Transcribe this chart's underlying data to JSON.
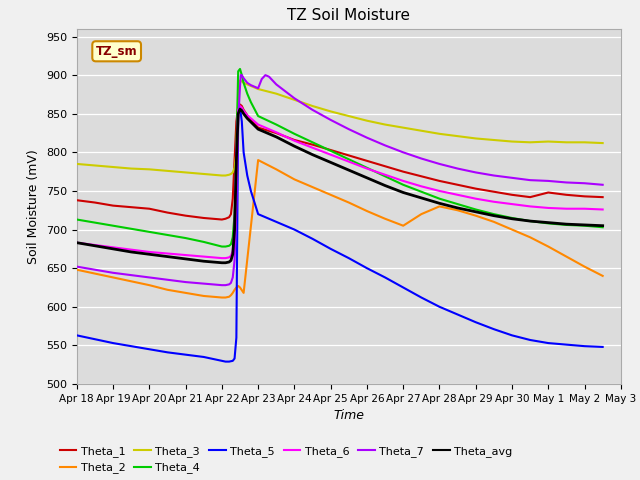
{
  "title": "TZ Soil Moisture",
  "ylabel": "Soil Moisture (mV)",
  "xlabel": "Time",
  "legend_label": "TZ_sm",
  "ylim": [
    500,
    960
  ],
  "yticks": [
    500,
    550,
    600,
    650,
    700,
    750,
    800,
    850,
    900,
    950
  ],
  "x_tick_labels": [
    "Apr 18",
    "Apr 19",
    "Apr 20",
    "Apr 21",
    "Apr 22",
    "Apr 23",
    "Apr 24",
    "Apr 25",
    "Apr 26",
    "Apr 27",
    "Apr 28",
    "Apr 29",
    "Apr 30",
    "May 1",
    "May 2",
    "May 3"
  ],
  "background_color": "#dcdcdc",
  "series": {
    "Theta_1": {
      "color": "#cc0000",
      "points": [
        [
          0,
          738
        ],
        [
          0.5,
          735
        ],
        [
          1,
          731
        ],
        [
          1.5,
          729
        ],
        [
          2,
          727
        ],
        [
          2.5,
          722
        ],
        [
          3,
          718
        ],
        [
          3.5,
          715
        ],
        [
          4.0,
          713
        ],
        [
          4.1,
          714
        ],
        [
          4.2,
          716
        ],
        [
          4.25,
          720
        ],
        [
          4.3,
          740
        ],
        [
          4.35,
          790
        ],
        [
          4.4,
          840
        ],
        [
          4.45,
          858
        ],
        [
          4.5,
          862
        ],
        [
          4.55,
          860
        ],
        [
          4.6,
          855
        ],
        [
          4.7,
          848
        ],
        [
          4.8,
          842
        ],
        [
          5,
          832
        ],
        [
          5.5,
          825
        ],
        [
          6,
          816
        ],
        [
          6.5,
          810
        ],
        [
          7,
          803
        ],
        [
          7.5,
          796
        ],
        [
          8,
          789
        ],
        [
          8.5,
          782
        ],
        [
          9,
          775
        ],
        [
          9.5,
          769
        ],
        [
          10,
          763
        ],
        [
          10.5,
          758
        ],
        [
          11,
          753
        ],
        [
          11.5,
          749
        ],
        [
          12,
          745
        ],
        [
          12.5,
          742
        ],
        [
          13,
          748
        ],
        [
          13.5,
          745
        ],
        [
          14,
          743
        ],
        [
          14.5,
          742
        ]
      ]
    },
    "Theta_2": {
      "color": "#ff8800",
      "points": [
        [
          0,
          648
        ],
        [
          0.5,
          643
        ],
        [
          1,
          638
        ],
        [
          1.5,
          633
        ],
        [
          2,
          628
        ],
        [
          2.5,
          622
        ],
        [
          3,
          618
        ],
        [
          3.5,
          614
        ],
        [
          4.0,
          612
        ],
        [
          4.1,
          612
        ],
        [
          4.2,
          613
        ],
        [
          4.25,
          615
        ],
        [
          4.3,
          618
        ],
        [
          4.35,
          622
        ],
        [
          4.4,
          625
        ],
        [
          4.45,
          627
        ],
        [
          4.5,
          625
        ],
        [
          4.6,
          618
        ],
        [
          5,
          790
        ],
        [
          5.5,
          778
        ],
        [
          6,
          765
        ],
        [
          6.5,
          755
        ],
        [
          7,
          745
        ],
        [
          7.5,
          735
        ],
        [
          8,
          724
        ],
        [
          8.5,
          714
        ],
        [
          9,
          705
        ],
        [
          9.5,
          720
        ],
        [
          10,
          730
        ],
        [
          10.5,
          725
        ],
        [
          11,
          718
        ],
        [
          11.5,
          710
        ],
        [
          12,
          700
        ],
        [
          12.5,
          690
        ],
        [
          13,
          678
        ],
        [
          13.5,
          665
        ],
        [
          14,
          652
        ],
        [
          14.5,
          640
        ]
      ]
    },
    "Theta_3": {
      "color": "#cccc00",
      "points": [
        [
          0,
          785
        ],
        [
          0.5,
          783
        ],
        [
          1,
          781
        ],
        [
          1.5,
          779
        ],
        [
          2,
          778
        ],
        [
          2.5,
          776
        ],
        [
          3,
          774
        ],
        [
          3.5,
          772
        ],
        [
          4.0,
          770
        ],
        [
          4.1,
          770
        ],
        [
          4.2,
          771
        ],
        [
          4.25,
          772
        ],
        [
          4.3,
          774
        ],
        [
          4.35,
          780
        ],
        [
          4.4,
          800
        ],
        [
          4.45,
          878
        ],
        [
          4.5,
          893
        ],
        [
          4.55,
          892
        ],
        [
          4.6,
          890
        ],
        [
          4.7,
          888
        ],
        [
          4.8,
          886
        ],
        [
          5,
          882
        ],
        [
          5.5,
          876
        ],
        [
          6,
          868
        ],
        [
          6.5,
          860
        ],
        [
          7,
          853
        ],
        [
          7.5,
          847
        ],
        [
          8,
          841
        ],
        [
          8.5,
          836
        ],
        [
          9,
          832
        ],
        [
          9.5,
          828
        ],
        [
          10,
          824
        ],
        [
          10.5,
          821
        ],
        [
          11,
          818
        ],
        [
          11.5,
          816
        ],
        [
          12,
          814
        ],
        [
          12.5,
          813
        ],
        [
          13,
          814
        ],
        [
          13.5,
          813
        ],
        [
          14,
          813
        ],
        [
          14.5,
          812
        ]
      ]
    },
    "Theta_4": {
      "color": "#00cc00",
      "points": [
        [
          0,
          713
        ],
        [
          0.5,
          709
        ],
        [
          1,
          705
        ],
        [
          1.5,
          701
        ],
        [
          2,
          697
        ],
        [
          2.5,
          693
        ],
        [
          3,
          689
        ],
        [
          3.5,
          684
        ],
        [
          4.0,
          678
        ],
        [
          4.1,
          678
        ],
        [
          4.2,
          679
        ],
        [
          4.25,
          681
        ],
        [
          4.3,
          690
        ],
        [
          4.35,
          720
        ],
        [
          4.4,
          800
        ],
        [
          4.45,
          905
        ],
        [
          4.5,
          908
        ],
        [
          4.55,
          900
        ],
        [
          4.6,
          890
        ],
        [
          4.7,
          876
        ],
        [
          4.8,
          865
        ],
        [
          5,
          847
        ],
        [
          5.5,
          836
        ],
        [
          6,
          824
        ],
        [
          6.5,
          813
        ],
        [
          7,
          802
        ],
        [
          7.5,
          791
        ],
        [
          8,
          780
        ],
        [
          8.5,
          769
        ],
        [
          9,
          758
        ],
        [
          9.5,
          749
        ],
        [
          10,
          740
        ],
        [
          10.5,
          733
        ],
        [
          11,
          726
        ],
        [
          11.5,
          720
        ],
        [
          12,
          715
        ],
        [
          12.5,
          711
        ],
        [
          13,
          708
        ],
        [
          13.5,
          706
        ],
        [
          14,
          705
        ],
        [
          14.5,
          703
        ]
      ]
    },
    "Theta_5": {
      "color": "#0000ff",
      "points": [
        [
          0,
          563
        ],
        [
          0.5,
          558
        ],
        [
          1,
          553
        ],
        [
          1.5,
          549
        ],
        [
          2,
          545
        ],
        [
          2.5,
          541
        ],
        [
          3,
          538
        ],
        [
          3.5,
          535
        ],
        [
          4.0,
          530
        ],
        [
          4.1,
          529
        ],
        [
          4.2,
          529
        ],
        [
          4.3,
          530
        ],
        [
          4.35,
          533
        ],
        [
          4.4,
          560
        ],
        [
          4.45,
          850
        ],
        [
          4.5,
          858
        ],
        [
          4.55,
          840
        ],
        [
          4.6,
          800
        ],
        [
          4.7,
          770
        ],
        [
          4.8,
          750
        ],
        [
          5,
          720
        ],
        [
          5.5,
          710
        ],
        [
          6,
          700
        ],
        [
          6.5,
          688
        ],
        [
          7,
          675
        ],
        [
          7.5,
          663
        ],
        [
          8,
          650
        ],
        [
          8.5,
          638
        ],
        [
          9,
          625
        ],
        [
          9.5,
          612
        ],
        [
          10,
          600
        ],
        [
          10.5,
          590
        ],
        [
          11,
          580
        ],
        [
          11.5,
          571
        ],
        [
          12,
          563
        ],
        [
          12.5,
          557
        ],
        [
          13,
          553
        ],
        [
          13.5,
          551
        ],
        [
          14,
          549
        ],
        [
          14.5,
          548
        ]
      ]
    },
    "Theta_6": {
      "color": "#ff00ff",
      "points": [
        [
          0,
          683
        ],
        [
          0.5,
          680
        ],
        [
          1,
          677
        ],
        [
          1.5,
          674
        ],
        [
          2,
          671
        ],
        [
          2.5,
          669
        ],
        [
          3,
          667
        ],
        [
          3.5,
          665
        ],
        [
          4.0,
          663
        ],
        [
          4.1,
          663
        ],
        [
          4.2,
          664
        ],
        [
          4.25,
          666
        ],
        [
          4.3,
          672
        ],
        [
          4.35,
          700
        ],
        [
          4.4,
          800
        ],
        [
          4.45,
          855
        ],
        [
          4.5,
          860
        ],
        [
          4.55,
          858
        ],
        [
          4.6,
          854
        ],
        [
          4.7,
          848
        ],
        [
          5,
          836
        ],
        [
          5.5,
          826
        ],
        [
          6,
          815
        ],
        [
          6.5,
          806
        ],
        [
          7,
          797
        ],
        [
          7.5,
          788
        ],
        [
          8,
          779
        ],
        [
          8.5,
          771
        ],
        [
          9,
          763
        ],
        [
          9.5,
          756
        ],
        [
          10,
          750
        ],
        [
          10.5,
          745
        ],
        [
          11,
          740
        ],
        [
          11.5,
          736
        ],
        [
          12,
          733
        ],
        [
          12.5,
          730
        ],
        [
          13,
          728
        ],
        [
          13.5,
          727
        ],
        [
          14,
          727
        ],
        [
          14.5,
          726
        ]
      ]
    },
    "Theta_7": {
      "color": "#aa00ff",
      "points": [
        [
          0,
          652
        ],
        [
          0.5,
          648
        ],
        [
          1,
          644
        ],
        [
          1.5,
          641
        ],
        [
          2,
          638
        ],
        [
          2.5,
          635
        ],
        [
          3,
          632
        ],
        [
          3.5,
          630
        ],
        [
          4.0,
          628
        ],
        [
          4.1,
          628
        ],
        [
          4.2,
          629
        ],
        [
          4.25,
          631
        ],
        [
          4.3,
          638
        ],
        [
          4.35,
          660
        ],
        [
          4.4,
          730
        ],
        [
          4.45,
          840
        ],
        [
          4.5,
          885
        ],
        [
          4.52,
          900
        ],
        [
          4.55,
          900
        ],
        [
          4.6,
          896
        ],
        [
          4.65,
          893
        ],
        [
          4.7,
          890
        ],
        [
          4.8,
          887
        ],
        [
          5,
          883
        ],
        [
          5.1,
          895
        ],
        [
          5.2,
          900
        ],
        [
          5.3,
          898
        ],
        [
          5.4,
          893
        ],
        [
          5.5,
          888
        ],
        [
          6,
          870
        ],
        [
          6.5,
          855
        ],
        [
          7,
          842
        ],
        [
          7.5,
          830
        ],
        [
          8,
          819
        ],
        [
          8.5,
          809
        ],
        [
          9,
          800
        ],
        [
          9.5,
          792
        ],
        [
          10,
          785
        ],
        [
          10.5,
          779
        ],
        [
          11,
          774
        ],
        [
          11.5,
          770
        ],
        [
          12,
          767
        ],
        [
          12.5,
          764
        ],
        [
          13,
          763
        ],
        [
          13.5,
          761
        ],
        [
          14,
          760
        ],
        [
          14.5,
          758
        ]
      ]
    },
    "Theta_avg": {
      "color": "#000000",
      "points": [
        [
          0,
          683
        ],
        [
          0.5,
          679
        ],
        [
          1,
          675
        ],
        [
          1.5,
          671
        ],
        [
          2,
          668
        ],
        [
          2.5,
          665
        ],
        [
          3,
          662
        ],
        [
          3.5,
          659
        ],
        [
          4.0,
          657
        ],
        [
          4.1,
          657
        ],
        [
          4.2,
          658
        ],
        [
          4.25,
          660
        ],
        [
          4.3,
          668
        ],
        [
          4.35,
          700
        ],
        [
          4.4,
          790
        ],
        [
          4.45,
          850
        ],
        [
          4.5,
          856
        ],
        [
          4.55,
          854
        ],
        [
          4.6,
          850
        ],
        [
          4.7,
          844
        ],
        [
          5,
          830
        ],
        [
          5.5,
          820
        ],
        [
          6,
          808
        ],
        [
          6.5,
          797
        ],
        [
          7,
          787
        ],
        [
          7.5,
          777
        ],
        [
          8,
          767
        ],
        [
          8.5,
          757
        ],
        [
          9,
          748
        ],
        [
          9.5,
          741
        ],
        [
          10,
          734
        ],
        [
          10.5,
          728
        ],
        [
          11,
          723
        ],
        [
          11.5,
          718
        ],
        [
          12,
          714
        ],
        [
          12.5,
          711
        ],
        [
          13,
          709
        ],
        [
          13.5,
          707
        ],
        [
          14,
          706
        ],
        [
          14.5,
          705
        ]
      ]
    }
  }
}
